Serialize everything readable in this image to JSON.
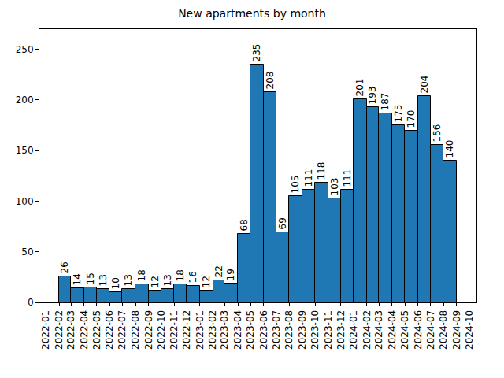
{
  "chart_data": {
    "type": "histogram",
    "title": "New apartments by month",
    "bins": [
      "2022-02",
      "2022-03",
      "2022-04",
      "2022-05",
      "2022-06",
      "2022-07",
      "2022-08",
      "2022-09",
      "2022-10",
      "2022-11",
      "2022-12",
      "2023-01",
      "2023-02",
      "2023-03",
      "2023-04",
      "2023-05",
      "2023-06",
      "2023-07",
      "2023-08",
      "2023-09",
      "2023-10",
      "2023-11",
      "2023-12",
      "2024-01",
      "2024-02",
      "2024-03",
      "2024-04",
      "2024-05",
      "2024-06",
      "2024-07",
      "2024-08",
      "2024-09"
    ],
    "values": [
      26,
      14,
      15,
      13,
      10,
      13,
      18,
      12,
      13,
      18,
      16,
      12,
      22,
      19,
      68,
      235,
      208,
      69,
      105,
      111,
      118,
      103,
      111,
      201,
      193,
      187,
      175,
      170,
      204,
      156,
      140
    ],
    "color": "#1f77b4",
    "xlim": [
      "2021-12-16",
      "2024-10-18"
    ],
    "xticks": [
      "2022-01",
      "2022-02",
      "2022-03",
      "2022-04",
      "2022-05",
      "2022-06",
      "2022-07",
      "2022-08",
      "2022-09",
      "2022-10",
      "2022-11",
      "2022-12",
      "2023-01",
      "2023-02",
      "2023-03",
      "2023-04",
      "2023-05",
      "2023-06",
      "2023-07",
      "2023-08",
      "2023-09",
      "2023-10",
      "2023-11",
      "2023-12",
      "2024-01",
      "2024-02",
      "2024-03",
      "2024-04",
      "2024-05",
      "2024-06",
      "2024-07",
      "2024-08",
      "2024-09",
      "2024-10"
    ],
    "ylim": [
      0,
      270
    ],
    "yticks": [
      0,
      50,
      100,
      150,
      200,
      250
    ],
    "grid": false,
    "data_labels": true
  }
}
